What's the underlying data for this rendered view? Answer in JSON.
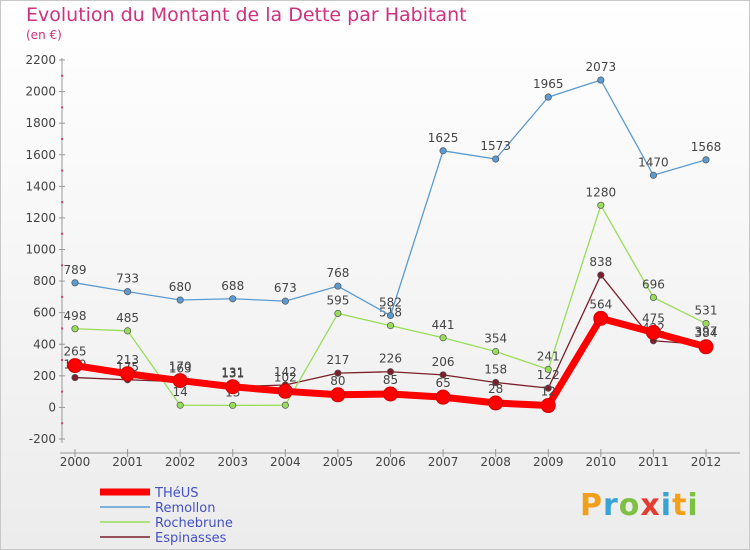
{
  "title": "Evolution du Montant de la Dette par Habitant",
  "unit": "(en €)",
  "logo": {
    "letters": [
      "P",
      "r",
      "o",
      "x",
      "i",
      "t",
      "i"
    ],
    "colors": [
      "#f2a01c",
      "#3aa3d6",
      "#7cc142",
      "#e63c2f",
      "#3aa3d6",
      "#f2a01c",
      "#7cc142"
    ]
  },
  "chart_data": {
    "type": "line",
    "x": [
      "2000",
      "2001",
      "2002",
      "2003",
      "2004",
      "2005",
      "2006",
      "2007",
      "2008",
      "2009",
      "2010",
      "2011",
      "2012"
    ],
    "yticks": [
      "-200",
      "0",
      "200",
      "400",
      "600",
      "800",
      "1000",
      "1200",
      "1400",
      "1600",
      "1800",
      "2000",
      "2200"
    ],
    "ylim": [
      -200,
      2200
    ],
    "grid": false,
    "legend": "bottom-left",
    "series": [
      {
        "name": "Espinasses",
        "color": "#7a1f2b",
        "values": [
          189,
          175,
          163,
          131,
          142,
          217,
          226,
          206,
          158,
          122,
          838,
          422,
          397
        ]
      },
      {
        "name": "Rochebrune",
        "color": "#98dd5a",
        "values": [
          498,
          485,
          14,
          13,
          14,
          595,
          518,
          441,
          354,
          241,
          1280,
          696,
          531
        ]
      },
      {
        "name": "Remollon",
        "color": "#5b9bd0",
        "values": [
          789,
          733,
          680,
          688,
          673,
          768,
          582,
          1625,
          1573,
          1965,
          2073,
          1470,
          1568
        ]
      },
      {
        "name": "THéUS",
        "color": "#ff0000",
        "values": [
          265,
          213,
          170,
          131,
          102,
          80,
          85,
          65,
          28,
          12,
          564,
          475,
          384
        ]
      }
    ]
  }
}
